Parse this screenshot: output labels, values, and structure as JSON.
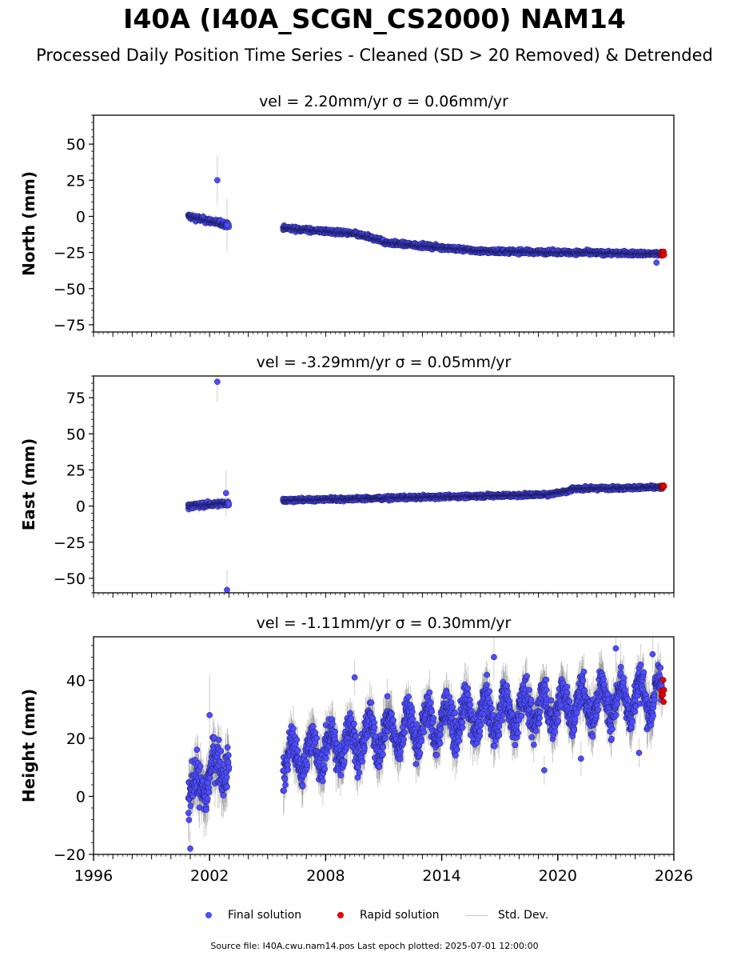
{
  "title": "I40A (I40A_SCGN_CS2000) NAM14",
  "subtitle": "Processed Daily Position Time Series - Cleaned (SD > 20 Removed) & Detrended",
  "footer": "Source file: I40A.cwu.nam14.pos  Last epoch plotted: 2025-07-01 12:00:00",
  "legend": {
    "final": "Final solution",
    "rapid": "Rapid solution",
    "sd": "Std. Dev."
  },
  "colors": {
    "final": "#4d4dff",
    "rapid": "#e60000",
    "sd": "#c8c8c8"
  },
  "chart_data": [
    {
      "type": "scatter",
      "title": "vel = 2.20mm/yr   σ = 0.06mm/yr",
      "ylabel": "North (mm)",
      "xlim": [
        1996,
        2026
      ],
      "ylim": [
        -80,
        70
      ],
      "yticks": [
        -75,
        -50,
        -25,
        0,
        25,
        50
      ],
      "segments": [
        {
          "x_start": 2000.9,
          "x_end": 2003.0,
          "y_start": 0,
          "y_end": -6,
          "noise": 1.5,
          "sd": 3
        },
        {
          "x_start": 2005.8,
          "x_end": 2009.5,
          "y_start": -8,
          "y_end": -12,
          "noise": 1.2,
          "sd": 2
        },
        {
          "x_start": 2009.5,
          "x_end": 2011.0,
          "y_start": -12,
          "y_end": -17,
          "noise": 1.2,
          "sd": 2
        },
        {
          "x_start": 2011.0,
          "x_end": 2016.0,
          "y_start": -18,
          "y_end": -24,
          "noise": 1.2,
          "sd": 2
        },
        {
          "x_start": 2016.0,
          "x_end": 2025.4,
          "y_start": -24,
          "y_end": -26,
          "noise": 1.2,
          "sd": 2
        }
      ],
      "outliers": [
        {
          "x": 2002.4,
          "y": 25,
          "sd": 17
        },
        {
          "x": 2002.9,
          "y": -6,
          "sd": 18
        },
        {
          "x": 2025.1,
          "y": -32,
          "sd": 3
        }
      ],
      "rapid": {
        "x_start": 2025.35,
        "x_end": 2025.5,
        "y": -26,
        "noise": 1.0
      }
    },
    {
      "type": "scatter",
      "title": "vel = -3.29mm/yr   σ = 0.05mm/yr",
      "ylabel": "East (mm)",
      "xlim": [
        1996,
        2026
      ],
      "ylim": [
        -60,
        90
      ],
      "yticks": [
        -50,
        -25,
        0,
        25,
        50,
        75
      ],
      "segments": [
        {
          "x_start": 2000.9,
          "x_end": 2003.0,
          "y_start": 0,
          "y_end": 2,
          "noise": 1.4,
          "sd": 3
        },
        {
          "x_start": 2005.8,
          "x_end": 2019.5,
          "y_start": 4,
          "y_end": 8,
          "noise": 1.0,
          "sd": 2
        },
        {
          "x_start": 2019.5,
          "x_end": 2020.7,
          "y_start": 8,
          "y_end": 11,
          "noise": 1.0,
          "sd": 2
        },
        {
          "x_start": 2020.7,
          "x_end": 2025.4,
          "y_start": 12,
          "y_end": 13,
          "noise": 1.0,
          "sd": 2
        }
      ],
      "outliers": [
        {
          "x": 2002.4,
          "y": 86,
          "sd": 14
        },
        {
          "x": 2002.9,
          "y": -58,
          "sd": 14
        },
        {
          "x": 2002.85,
          "y": 9,
          "sd": 16
        }
      ],
      "rapid": {
        "x_start": 2025.35,
        "x_end": 2025.5,
        "y": 13,
        "noise": 0.8
      }
    },
    {
      "type": "scatter",
      "title": "vel = -1.11mm/yr   σ = 0.30mm/yr",
      "ylabel": "Height (mm)",
      "xlim": [
        1996,
        2026
      ],
      "ylim": [
        -20,
        55
      ],
      "yticks": [
        -20,
        0,
        20,
        40
      ],
      "xticks": [
        1996,
        2002,
        2008,
        2014,
        2020,
        2026
      ],
      "segments": [
        {
          "x_start": 2000.9,
          "x_end": 2003.0,
          "y_start": 0,
          "y_end": 14,
          "noise": 6,
          "sd": 8,
          "seasonal": 5
        },
        {
          "x_start": 2005.8,
          "x_end": 2010.0,
          "y_start": 12,
          "y_end": 20,
          "noise": 5,
          "sd": 7,
          "seasonal": 6
        },
        {
          "x_start": 2010.0,
          "x_end": 2016.0,
          "y_start": 20,
          "y_end": 28,
          "noise": 5,
          "sd": 7,
          "seasonal": 6
        },
        {
          "x_start": 2016.0,
          "x_end": 2025.4,
          "y_start": 28,
          "y_end": 35,
          "noise": 5,
          "sd": 7,
          "seasonal": 6
        }
      ],
      "outliers": [
        {
          "x": 2001.0,
          "y": -18,
          "sd": 6
        },
        {
          "x": 2002.0,
          "y": 28,
          "sd": 14
        },
        {
          "x": 2009.5,
          "y": 41,
          "sd": 6
        },
        {
          "x": 2016.7,
          "y": 48,
          "sd": 8
        },
        {
          "x": 2019.3,
          "y": 9,
          "sd": 5
        },
        {
          "x": 2021.2,
          "y": 13,
          "sd": 6
        },
        {
          "x": 2023.0,
          "y": 51,
          "sd": 8
        },
        {
          "x": 2024.9,
          "y": 49,
          "sd": 6
        },
        {
          "x": 2024.2,
          "y": 15,
          "sd": 5
        }
      ],
      "rapid": {
        "x_start": 2025.35,
        "x_end": 2025.5,
        "y": 35,
        "noise": 2.5
      }
    }
  ]
}
